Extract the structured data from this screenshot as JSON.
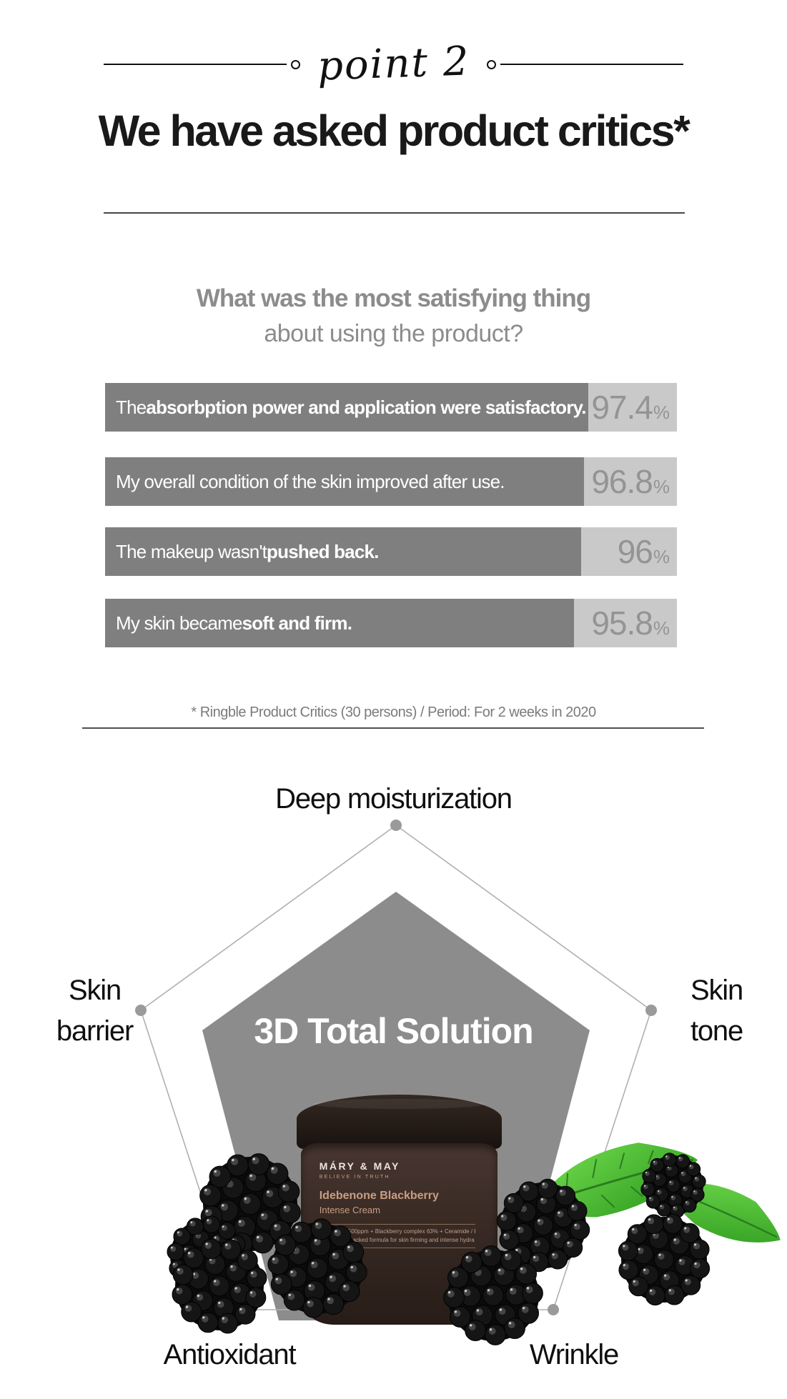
{
  "header": {
    "point_label": "point 2",
    "title": "We have asked product critics*"
  },
  "survey": {
    "question_line1": "What was the most satisfying thing",
    "question_line2": "about using the product?",
    "bars": [
      {
        "pre": "The ",
        "strong": "absorbption power and application were satisfactory.",
        "value": "97.4",
        "unit": "%",
        "fill": "width:84.5%"
      },
      {
        "pre": "My overall condition of the skin improved after use.",
        "strong": "",
        "value": "96.8",
        "unit": "%",
        "fill": "width:83.7%"
      },
      {
        "pre": "The makeup wasn't ",
        "strong": "pushed back.",
        "value": "96",
        "unit": "%",
        "fill": "width:83.2%"
      },
      {
        "pre": "My skin became ",
        "strong": "soft and firm.",
        "value": "95.8",
        "unit": "%",
        "fill": "width:82%"
      }
    ],
    "footnote": "* Ringble Product Critics (30 persons) / Period: For 2 weeks in 2020"
  },
  "radar": {
    "center_label": "3D Total Solution",
    "axis_top": "Deep moisturization",
    "axis_left_line1": "Skin",
    "axis_left_line2": "barrier",
    "axis_right_line1": "Skin",
    "axis_right_line2": "tone",
    "axis_bottom_left": "Antioxidant",
    "axis_bottom_right": "Wrinkle"
  },
  "product": {
    "brand": "MÁRY & MAY",
    "tagline": "BELIEVE IN TRUTH",
    "name_line1": "Idebenone Blackberry",
    "name_line2": "Intense Cream",
    "desc_line1": "Idebenone 500ppm + Blackberry complex 63% + Ceramide / F",
    "desc_line2": "Antioxidant-packed formula for skin firming and intense hydra"
  },
  "colors": {
    "bar_dark": "#7f7f7f",
    "bar_light": "#c9c9c9",
    "pct_text": "#949494",
    "heading_text": "#191919",
    "question_text": "#8c8c8c",
    "footnote_text": "#7b7b7b",
    "pentagon_fill": "#8c8c8c",
    "pentagon_outline": "#b0b0b0",
    "vertex_dot": "#9a9a9a",
    "center_label_text": "#ffffff",
    "jar_body": "#3a2b25",
    "jar_accent_text": "#c89e82",
    "leaf_green": "#45b52e"
  },
  "chart_data": [
    {
      "type": "bar",
      "orientation": "horizontal",
      "title": "What was the most satisfying thing about using the product?",
      "categories": [
        "The absorbption power and application were satisfactory.",
        "My overall condition of the skin improved after use.",
        "The makeup wasn't pushed back.",
        "My skin became soft and firm."
      ],
      "values": [
        97.4,
        96.8,
        96,
        95.8
      ],
      "unit": "%",
      "xlim": [
        0,
        100
      ],
      "value_labels_shown": true,
      "footnote": "* Ringble Product Critics (30 persons) / Period: For 2 weeks in 2020"
    },
    {
      "type": "radar",
      "shape": "pentagon",
      "axes": [
        "Deep moisturization",
        "Skin tone",
        "Wrinkle",
        "Antioxidant",
        "Skin barrier"
      ],
      "series": [
        {
          "name": "3D Total Solution",
          "values": [
            0.8,
            0.8,
            0.8,
            0.8,
            0.8
          ]
        }
      ],
      "scale": [
        0,
        1
      ],
      "center_label": "3D Total Solution"
    }
  ]
}
